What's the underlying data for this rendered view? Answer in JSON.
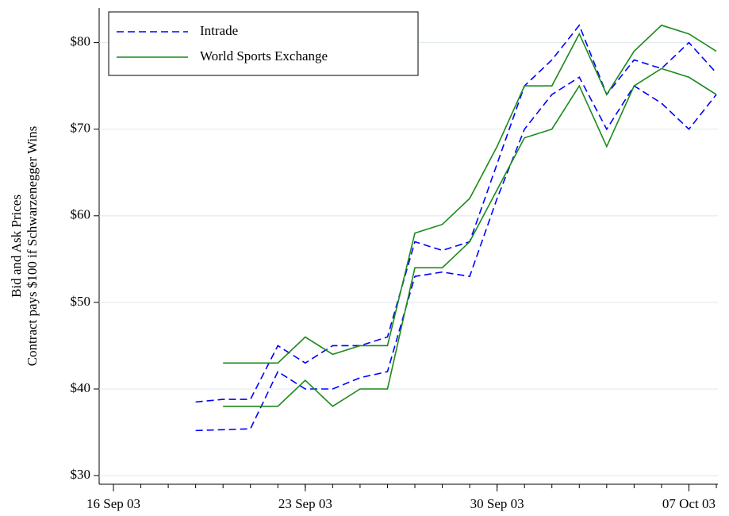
{
  "chart_data": {
    "type": "line",
    "ylabel": [
      "Bid and Ask Prices",
      "Contract pays $100 if Schwarzenegger Wins"
    ],
    "x": [
      "2003-09-19",
      "2003-09-20",
      "2003-09-21",
      "2003-09-22",
      "2003-09-23",
      "2003-09-24",
      "2003-09-25",
      "2003-09-26",
      "2003-09-27",
      "2003-09-28",
      "2003-09-29",
      "2003-09-30",
      "2003-10-01",
      "2003-10-02",
      "2003-10-03",
      "2003-10-04",
      "2003-10-05",
      "2003-10-06",
      "2003-10-07",
      "2003-10-08"
    ],
    "series": [
      {
        "name": "Intrade",
        "color": "#0000ff",
        "dashed": true,
        "lines": [
          [
            38.5,
            38.8,
            38.8,
            45,
            43,
            45,
            45,
            46,
            57,
            56,
            57,
            66,
            75,
            78,
            82,
            74,
            78,
            77,
            80,
            76.5
          ],
          [
            35.2,
            35.3,
            35.4,
            42,
            40,
            40,
            41.3,
            42,
            53,
            53.5,
            53,
            62,
            70,
            74,
            76,
            70,
            75,
            73,
            70,
            74
          ]
        ]
      },
      {
        "name": "World Sports Exchange",
        "color": "#1a8a1a",
        "dashed": false,
        "lines": [
          [
            null,
            43,
            43,
            43,
            46,
            44,
            45,
            45,
            58,
            59,
            62,
            68,
            75,
            75,
            81,
            74,
            79,
            82,
            81,
            79
          ],
          [
            null,
            38,
            38,
            38,
            41,
            38,
            40,
            40,
            54,
            54,
            57,
            63,
            69,
            70,
            75,
            68,
            75,
            77,
            76,
            74
          ]
        ]
      }
    ],
    "xlim": [
      "2003-09-16",
      "2003-10-08"
    ],
    "xticks": [
      {
        "value": "2003-09-16",
        "label": "16 Sep 03"
      },
      {
        "value": "2003-09-23",
        "label": "23 Sep 03"
      },
      {
        "value": "2003-09-30",
        "label": "30 Sep 03"
      },
      {
        "value": "2003-10-07",
        "label": "07 Oct 03"
      }
    ],
    "ylim": [
      29,
      84
    ],
    "yticks": [
      {
        "value": 30,
        "label": "$30"
      },
      {
        "value": 40,
        "label": "$40"
      },
      {
        "value": 50,
        "label": "$50"
      },
      {
        "value": 60,
        "label": "$60"
      },
      {
        "value": 70,
        "label": "$70"
      },
      {
        "value": 80,
        "label": "$80"
      }
    ],
    "grid": true
  }
}
